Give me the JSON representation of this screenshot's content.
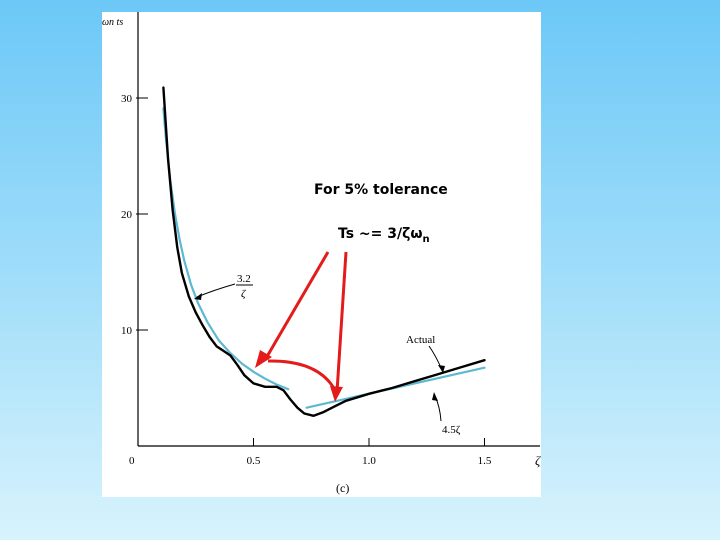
{
  "chart_data": {
    "type": "line",
    "ylabel": "ωn ts",
    "xlabel": "ζ",
    "caption": "(c)",
    "xlim": [
      0,
      1.5
    ],
    "ylim": [
      0,
      30
    ],
    "x_ticks": [
      {
        "value": 0,
        "label": "0"
      },
      {
        "value": 0.5,
        "label": "0.5"
      },
      {
        "value": 1.0,
        "label": "1.0"
      },
      {
        "value": 1.5,
        "label": "1.5"
      }
    ],
    "y_ticks": [
      {
        "value": 10,
        "label": "10"
      },
      {
        "value": 20,
        "label": "20"
      },
      {
        "value": 30,
        "label": "30"
      }
    ],
    "series": [
      {
        "name": "Actual",
        "color": "#000000",
        "points": [
          [
            0.11,
            30.9
          ],
          [
            0.13,
            24.8
          ],
          [
            0.15,
            20.3
          ],
          [
            0.17,
            17.1
          ],
          [
            0.19,
            14.9
          ],
          [
            0.22,
            12.9
          ],
          [
            0.25,
            11.5
          ],
          [
            0.28,
            10.4
          ],
          [
            0.31,
            9.4
          ],
          [
            0.34,
            8.6
          ],
          [
            0.37,
            8.2
          ],
          [
            0.4,
            7.8
          ],
          [
            0.43,
            7.0
          ],
          [
            0.46,
            6.1
          ],
          [
            0.5,
            5.4
          ],
          [
            0.55,
            5.1
          ],
          [
            0.6,
            5.1
          ],
          [
            0.63,
            4.8
          ],
          [
            0.66,
            4.0
          ],
          [
            0.69,
            3.3
          ],
          [
            0.72,
            2.8
          ],
          [
            0.76,
            2.6
          ],
          [
            0.8,
            2.9
          ],
          [
            0.85,
            3.4
          ],
          [
            0.9,
            3.9
          ],
          [
            1.0,
            4.5
          ],
          [
            1.1,
            5.0
          ],
          [
            1.2,
            5.6
          ],
          [
            1.3,
            6.2
          ],
          [
            1.4,
            6.8
          ],
          [
            1.5,
            7.4
          ]
        ]
      },
      {
        "name": "3.2/ζ",
        "color": "#5fb8d3",
        "points": [
          [
            0.11,
            29.1
          ],
          [
            0.12,
            26.7
          ],
          [
            0.14,
            22.9
          ],
          [
            0.16,
            20.0
          ],
          [
            0.18,
            17.8
          ],
          [
            0.2,
            16.0
          ],
          [
            0.23,
            13.9
          ],
          [
            0.26,
            12.3
          ],
          [
            0.3,
            10.7
          ],
          [
            0.35,
            9.1
          ],
          [
            0.4,
            8.0
          ],
          [
            0.45,
            7.1
          ],
          [
            0.5,
            6.4
          ],
          [
            0.55,
            5.8
          ],
          [
            0.6,
            5.3
          ],
          [
            0.65,
            4.9
          ]
        ]
      },
      {
        "name": "4.5ζ",
        "color": "#5fb8d3",
        "points": [
          [
            0.73,
            3.3
          ],
          [
            1.5,
            6.75
          ]
        ]
      }
    ],
    "annotations": [
      {
        "text_top": "3.2",
        "text_bottom": "ζ"
      },
      {
        "text": "Actual"
      },
      {
        "text": "4.5ζ"
      }
    ]
  },
  "overlay": {
    "tolerance_label": "For 5% tolerance",
    "formula_main": "Ts ~= 3/ζω",
    "formula_sub": "n",
    "arrow_color": "#e31b1b"
  }
}
